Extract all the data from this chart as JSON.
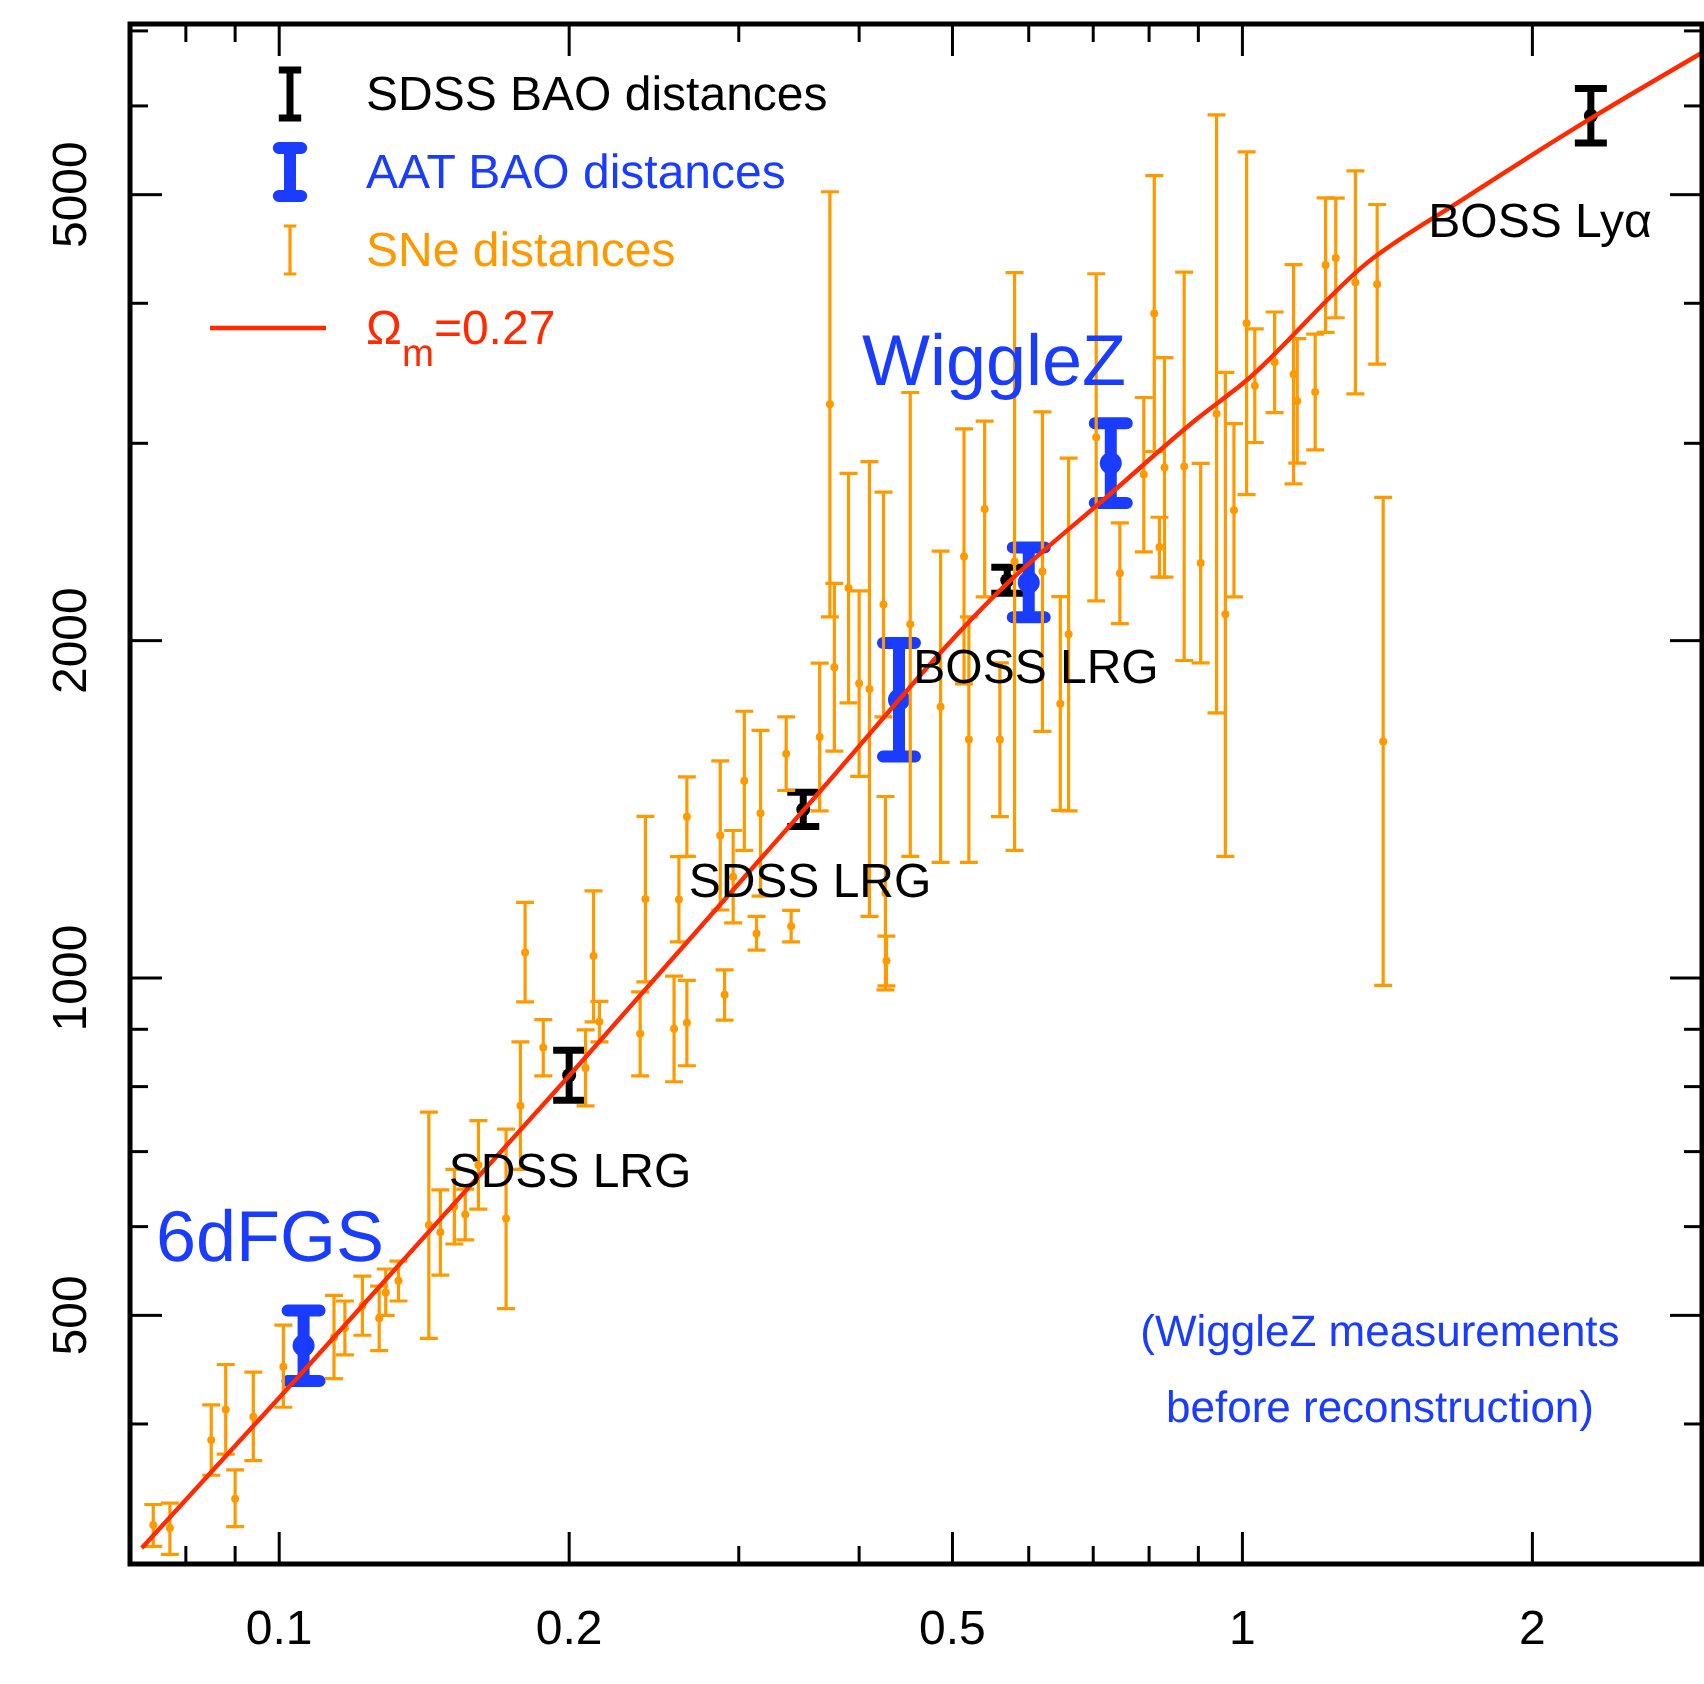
{
  "chart_data": {
    "type": "scatter",
    "log": "xy",
    "xlim": [
      0.07,
      3
    ],
    "ylim": [
      300,
      7100
    ],
    "xticks": [
      {
        "value": 0.08,
        "label": null
      },
      {
        "value": 0.09,
        "label": null
      },
      0.1,
      0.2,
      {
        "value": 0.3,
        "label": null
      },
      {
        "value": 0.4,
        "label": null
      },
      0.5,
      {
        "value": 0.6,
        "label": null
      },
      {
        "value": 0.7,
        "label": null
      },
      {
        "value": 0.8,
        "label": null
      },
      {
        "value": 0.9,
        "label": null
      },
      1,
      2
    ],
    "yticks": [
      {
        "value": 400,
        "label": null
      },
      500,
      {
        "value": 600,
        "label": null
      },
      {
        "value": 700,
        "label": null
      },
      {
        "value": 800,
        "label": null
      },
      {
        "value": 900,
        "label": null
      },
      1000,
      2000,
      {
        "value": 3000,
        "label": null
      },
      {
        "value": 4000,
        "label": null
      },
      5000,
      {
        "value": 6000,
        "label": null
      },
      {
        "value": 7000,
        "label": null
      }
    ],
    "grid": false,
    "legend": "top left",
    "line_style": "solid",
    "series": [
      {
        "name": "SDSS BAO distances",
        "marker": "circle",
        "color": "#000000",
        "x": [
          0.2,
          0.35,
          0.57,
          2.3
        ],
        "values": [
          819,
          1414,
          2264,
          5881
        ],
        "errors": [
          [
            778,
            862
          ],
          [
            1365,
            1465
          ],
          [
            2205,
            2325
          ],
          [
            5560,
            6220
          ]
        ]
      },
      {
        "name": "AAT BAO distances",
        "marker": "circle",
        "color": "#1a3cff",
        "x": [
          0.106,
          0.44,
          0.6,
          0.73
        ],
        "values": [
          470,
          1771,
          2254,
          2880
        ],
        "errors": [
          [
            437,
            505
          ],
          [
            1576,
            1990
          ],
          [
            2098,
            2422
          ],
          [
            2654,
            3126
          ]
        ]
      },
      {
        "name": "SNe distances",
        "marker": "circle",
        "color": "#ff9900",
        "x": [
          0.074,
          0.077,
          0.085,
          0.088,
          0.09,
          0.094,
          0.101,
          0.114,
          0.117,
          0.122,
          0.127,
          0.129,
          0.133,
          0.143,
          0.147,
          0.152,
          0.156,
          0.161,
          0.172,
          0.178,
          0.18,
          0.188,
          0.208,
          0.212,
          0.215,
          0.237,
          0.24,
          0.257,
          0.26,
          0.265,
          0.265,
          0.287,
          0.29,
          0.296,
          0.304,
          0.313,
          0.316,
          0.336,
          0.34,
          0.364,
          0.373,
          0.377,
          0.39,
          0.4,
          0.41,
          0.424,
          0.426,
          0.427,
          0.452,
          0.486,
          0.514,
          0.52,
          0.54,
          0.56,
          0.58,
          0.62,
          0.647,
          0.66,
          0.705,
          0.746,
          0.79,
          0.81,
          0.82,
          0.83,
          0.87,
          0.905,
          0.94,
          0.96,
          0.98,
          1.01,
          1.03,
          1.08,
          1.13,
          1.14,
          1.19,
          1.22,
          1.25,
          1.31,
          1.38,
          1.4
        ],
        "values": [
          325,
          323,
          387,
          412,
          343,
          406,
          450,
          478,
          487,
          510,
          497,
          524,
          537,
          602,
          593,
          625,
          615,
          681,
          610,
          769,
          1054,
          867,
          831,
          1046,
          914,
          892,
          1176,
          901,
          1175,
          912,
          1393,
          1340,
          966,
          1231,
          1500,
          1096,
          1403,
          1585,
          1112,
          1641,
          3250,
          1894,
          2228,
          1831,
          1811,
          2154,
          1190,
          1036,
          2068,
          1746,
          2378,
          1632,
          2621,
          1632,
          2353,
          2305,
          1757,
          2026,
          3037,
          2297,
          2813,
          3917,
          2423,
          2855,
          2861,
          2346,
          3187,
          2111,
          2614,
          3840,
          3377,
          3543,
          3457,
          3273,
          3333,
          4327,
          4391,
          4175,
          4159,
          1626
        ],
        "errors": [
          [
            311,
            339
          ],
          [
            306,
            340
          ],
          [
            360,
            416
          ],
          [
            376,
            452
          ],
          [
            324,
            364
          ],
          [
            371,
            445
          ],
          [
            414,
            490
          ],
          [
            439,
            521
          ],
          [
            461,
            515
          ],
          [
            480,
            542
          ],
          [
            465,
            531
          ],
          [
            500,
            550
          ],
          [
            515,
            559
          ],
          [
            477,
            759
          ],
          [
            543,
            647
          ],
          [
            579,
            675
          ],
          [
            584,
            648
          ],
          [
            622,
            746
          ],
          [
            507,
            733
          ],
          [
            675,
            877
          ],
          [
            952,
            1168
          ],
          [
            818,
            918
          ],
          [
            769,
            899
          ],
          [
            914,
            1196
          ],
          [
            877,
            953
          ],
          [
            818,
            972
          ],
          [
            992,
            1394
          ],
          [
            808,
            1004
          ],
          [
            1077,
            1283
          ],
          [
            835,
            995
          ],
          [
            1284,
            1512
          ],
          [
            1150,
            1562
          ],
          [
            917,
            1017
          ],
          [
            1120,
            1354
          ],
          [
            1300,
            1730
          ],
          [
            1059,
            1135
          ],
          [
            1183,
            1663
          ],
          [
            1470,
            1710
          ],
          [
            1077,
            1149
          ],
          [
            1410,
            1910
          ],
          [
            2100,
            5030
          ],
          [
            1594,
            2250
          ],
          [
            1760,
            2820
          ],
          [
            1513,
            2215
          ],
          [
            1135,
            2889
          ],
          [
            1710,
            2714
          ],
          [
            976,
            1452
          ],
          [
            984,
            1090
          ],
          [
            1284,
            3330
          ],
          [
            1268,
            2404
          ],
          [
            1830,
            3090
          ],
          [
            1268,
            2100
          ],
          [
            2188,
            3140
          ],
          [
            1393,
            1911
          ],
          [
            1300,
            4260
          ],
          [
            1660,
            3200
          ],
          [
            1411,
            2189
          ],
          [
            1410,
            2910
          ],
          [
            2170,
            4250
          ],
          [
            2071,
            2547
          ],
          [
            2400,
            3296
          ],
          [
            2950,
            5200
          ],
          [
            2279,
            2577
          ],
          [
            2279,
            3577
          ],
          [
            1920,
            4264
          ],
          [
            1911,
            2879
          ],
          [
            1724,
            5890
          ],
          [
            1284,
            3470
          ],
          [
            2188,
            3124
          ],
          [
            2700,
            5460
          ],
          [
            3005,
            3795
          ],
          [
            3195,
            3929
          ],
          [
            2760,
            4330
          ],
          [
            2880,
            3720
          ],
          [
            2960,
            3754
          ],
          [
            3768,
            4968
          ],
          [
            3883,
            4965
          ],
          [
            3320,
            5250
          ],
          [
            3530,
            4900
          ],
          [
            985,
            2685
          ]
        ]
      },
      {
        "name": "Ω$_{m}$=0.27",
        "type": "line",
        "color": "#ff2a00",
        "x": [
          0.072,
          0.106,
          0.2,
          0.35,
          0.57,
          0.73,
          0.9,
          1,
          1.35,
          1.7,
          2.3,
          3
        ],
        "values": [
          310,
          446,
          818,
          1411,
          2250,
          2706,
          3162,
          3390,
          4353,
          4963,
          5848,
          6693
        ]
      }
    ],
    "annotations": [
      "6dFGS",
      "SDSS LRG",
      "SDSS LRG",
      "BOSS LRG",
      "WiggleZ",
      "BOSS Lyα",
      "(WiggleZ measurements before reconstruction)"
    ]
  }
}
